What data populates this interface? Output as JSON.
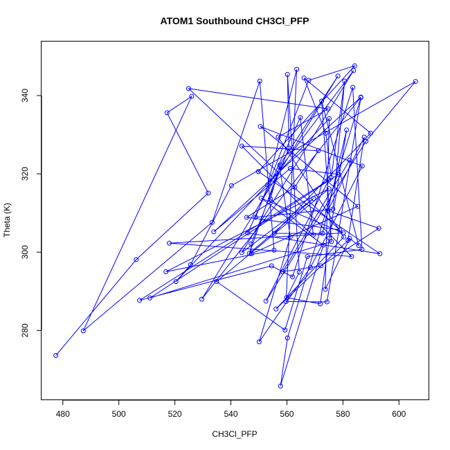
{
  "chart_data": {
    "type": "line",
    "title": "ATOM1 Southbound CH3Cl_PFP",
    "xlabel": "CH3Cl_PFP",
    "ylabel": "Theta (K)",
    "xlim": [
      472.4,
      610.8
    ],
    "ylim": [
      262.2,
      353.8
    ],
    "xticks": [
      480,
      500,
      520,
      540,
      560,
      580,
      600
    ],
    "yticks": [
      280,
      300,
      320,
      340
    ],
    "grid": false,
    "legend": "none",
    "series": [
      {
        "color": "#0000ff",
        "marker": "open-circle",
        "x": [
          477.5,
          506.2,
          531.9,
          517.2,
          526.0,
          487.3,
          533.3,
          550.3,
          555.4,
          516.8,
          575.0,
          534.9,
          559.3,
          567.3,
          586.8,
          583.5,
          562.0,
          554.5,
          507.4,
          575.0,
          552.5,
          588.2,
          605.9,
          540.2,
          525.6,
          520.4,
          575.1,
          573.7,
          582.4,
          585.6,
          572.4,
          575.9,
          511.1,
          578.4,
          561.2,
          533.9,
          586.4,
          529.6,
          578.2,
          557.5,
          554.1,
          569.4,
          564.8,
          546.0,
          593.2,
          549.8,
          584.2,
          567.8,
          548.8,
          576.4,
          580.6,
          575.8,
          573.9,
          566.1,
          589.9,
          555.5,
          572.7,
          581.3,
          575.1,
          571.9,
          559.9,
          564.4,
          560.2,
          560.7,
          547.2,
          547.3,
          585.3,
          550.5,
          586.9,
          568.4,
          550.1,
          561.2,
          557.4,
          546.6,
          569.5,
          543.9,
          583.8,
          553.1,
          563.5,
          559.7,
          574.3,
          586.4,
          560.2,
          557.7,
          573.0,
          550.8,
          580.1,
          518.0,
          583.1,
          543.9,
          571.2,
          562.8,
          545.6,
          578.8,
          524.9,
          574.7,
          556.9,
          580.3,
          556.1,
          581.8,
          587.6,
          574.6,
          592.8,
          572.1,
          558.5,
          582.4
        ],
        "y": [
          273.6,
          298.1,
          315.1,
          335.6,
          339.8,
          279.9,
          307.6,
          343.7,
          300.5,
          295.0,
          316.2,
          292.5,
          280.1,
          298.9,
          300.7,
          342.1,
          293.7,
          296.5,
          287.7,
          318.5,
          287.5,
          328.3,
          343.6,
          317.0,
          296.8,
          292.5,
          334.1,
          290.5,
          303.5,
          301.7,
          338.6,
          302.7,
          288.3,
          319.9,
          321.4,
          305.2,
          339.6,
          288.0,
          345.0,
          322.3,
          313.6,
          304.4,
          334.4,
          304.9,
          299.6,
          320.6,
          347.6,
          343.9,
          308.9,
          311.0,
          343.7,
          319.1,
          330.4,
          344.5,
          330.4,
          304.8,
          304.8,
          331.2,
          303.6,
          286.8,
          288.4,
          294.9,
          345.4,
          326.6,
          302.1,
          299.6,
          311.7,
          332.1,
          322.0,
          296.1,
          277.1,
          303.9,
          321.8,
          299.7,
          313.7,
          299.9,
          346.4,
          317.2,
          346.7,
          287.4,
          287.3,
          339.5,
          278.1,
          265.8,
          301.8,
          313.8,
          304.9,
          302.3,
          298.9,
          327.1,
          325.9,
          316.6,
          308.9,
          305.7,
          341.8,
          336.6,
          329.4,
          303.9,
          285.5,
          303.0,
          329.4,
          310.6,
          306.1,
          296.5,
          295.0,
          323.5
        ]
      }
    ]
  }
}
